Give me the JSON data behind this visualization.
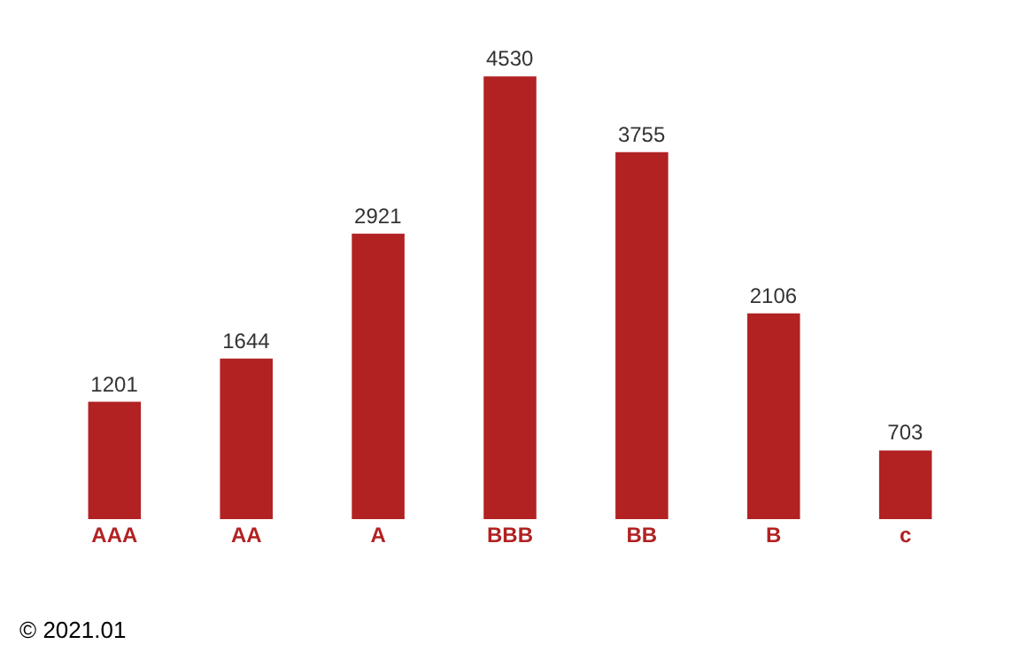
{
  "chart_data": {
    "type": "bar",
    "categories": [
      "AAA",
      "AA",
      "A",
      "BBB",
      "BB",
      "B",
      "c"
    ],
    "values": [
      1201,
      1644,
      2921,
      4530,
      3755,
      2106,
      703
    ],
    "color": "#b22222",
    "data_labels": true,
    "annotations": [
      "© 2021.01"
    ]
  }
}
